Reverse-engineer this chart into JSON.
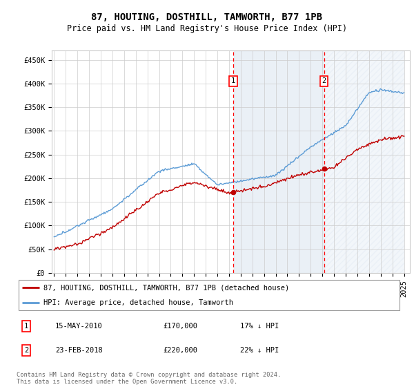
{
  "title": "87, HOUTING, DOSTHILL, TAMWORTH, B77 1PB",
  "subtitle": "Price paid vs. HM Land Registry's House Price Index (HPI)",
  "ylabel_ticks": [
    "£0",
    "£50K",
    "£100K",
    "£150K",
    "£200K",
    "£250K",
    "£300K",
    "£350K",
    "£400K",
    "£450K"
  ],
  "ylim": [
    0,
    470000
  ],
  "xlim_start": 1994.8,
  "xlim_end": 2025.5,
  "transaction1": {
    "date_num": 2010.37,
    "price": 170000,
    "label": "1",
    "date_str": "15-MAY-2010",
    "pct": "17% ↓ HPI"
  },
  "transaction2": {
    "date_num": 2018.15,
    "price": 220000,
    "label": "2",
    "date_str": "23-FEB-2018",
    "pct": "22% ↓ HPI"
  },
  "legend_line1": "87, HOUTING, DOSTHILL, TAMWORTH, B77 1PB (detached house)",
  "legend_line2": "HPI: Average price, detached house, Tamworth",
  "footer": "Contains HM Land Registry data © Crown copyright and database right 2024.\nThis data is licensed under the Open Government Licence v3.0.",
  "hpi_color": "#5b9bd5",
  "price_color": "#c00000",
  "shade_color": "#dce6f1",
  "background_color": "#ffffff",
  "grid_color": "#cccccc",
  "title_fontsize": 10,
  "subtitle_fontsize": 8.5,
  "tick_fontsize": 7.5,
  "legend_fontsize": 8,
  "annotation_fontsize": 8
}
